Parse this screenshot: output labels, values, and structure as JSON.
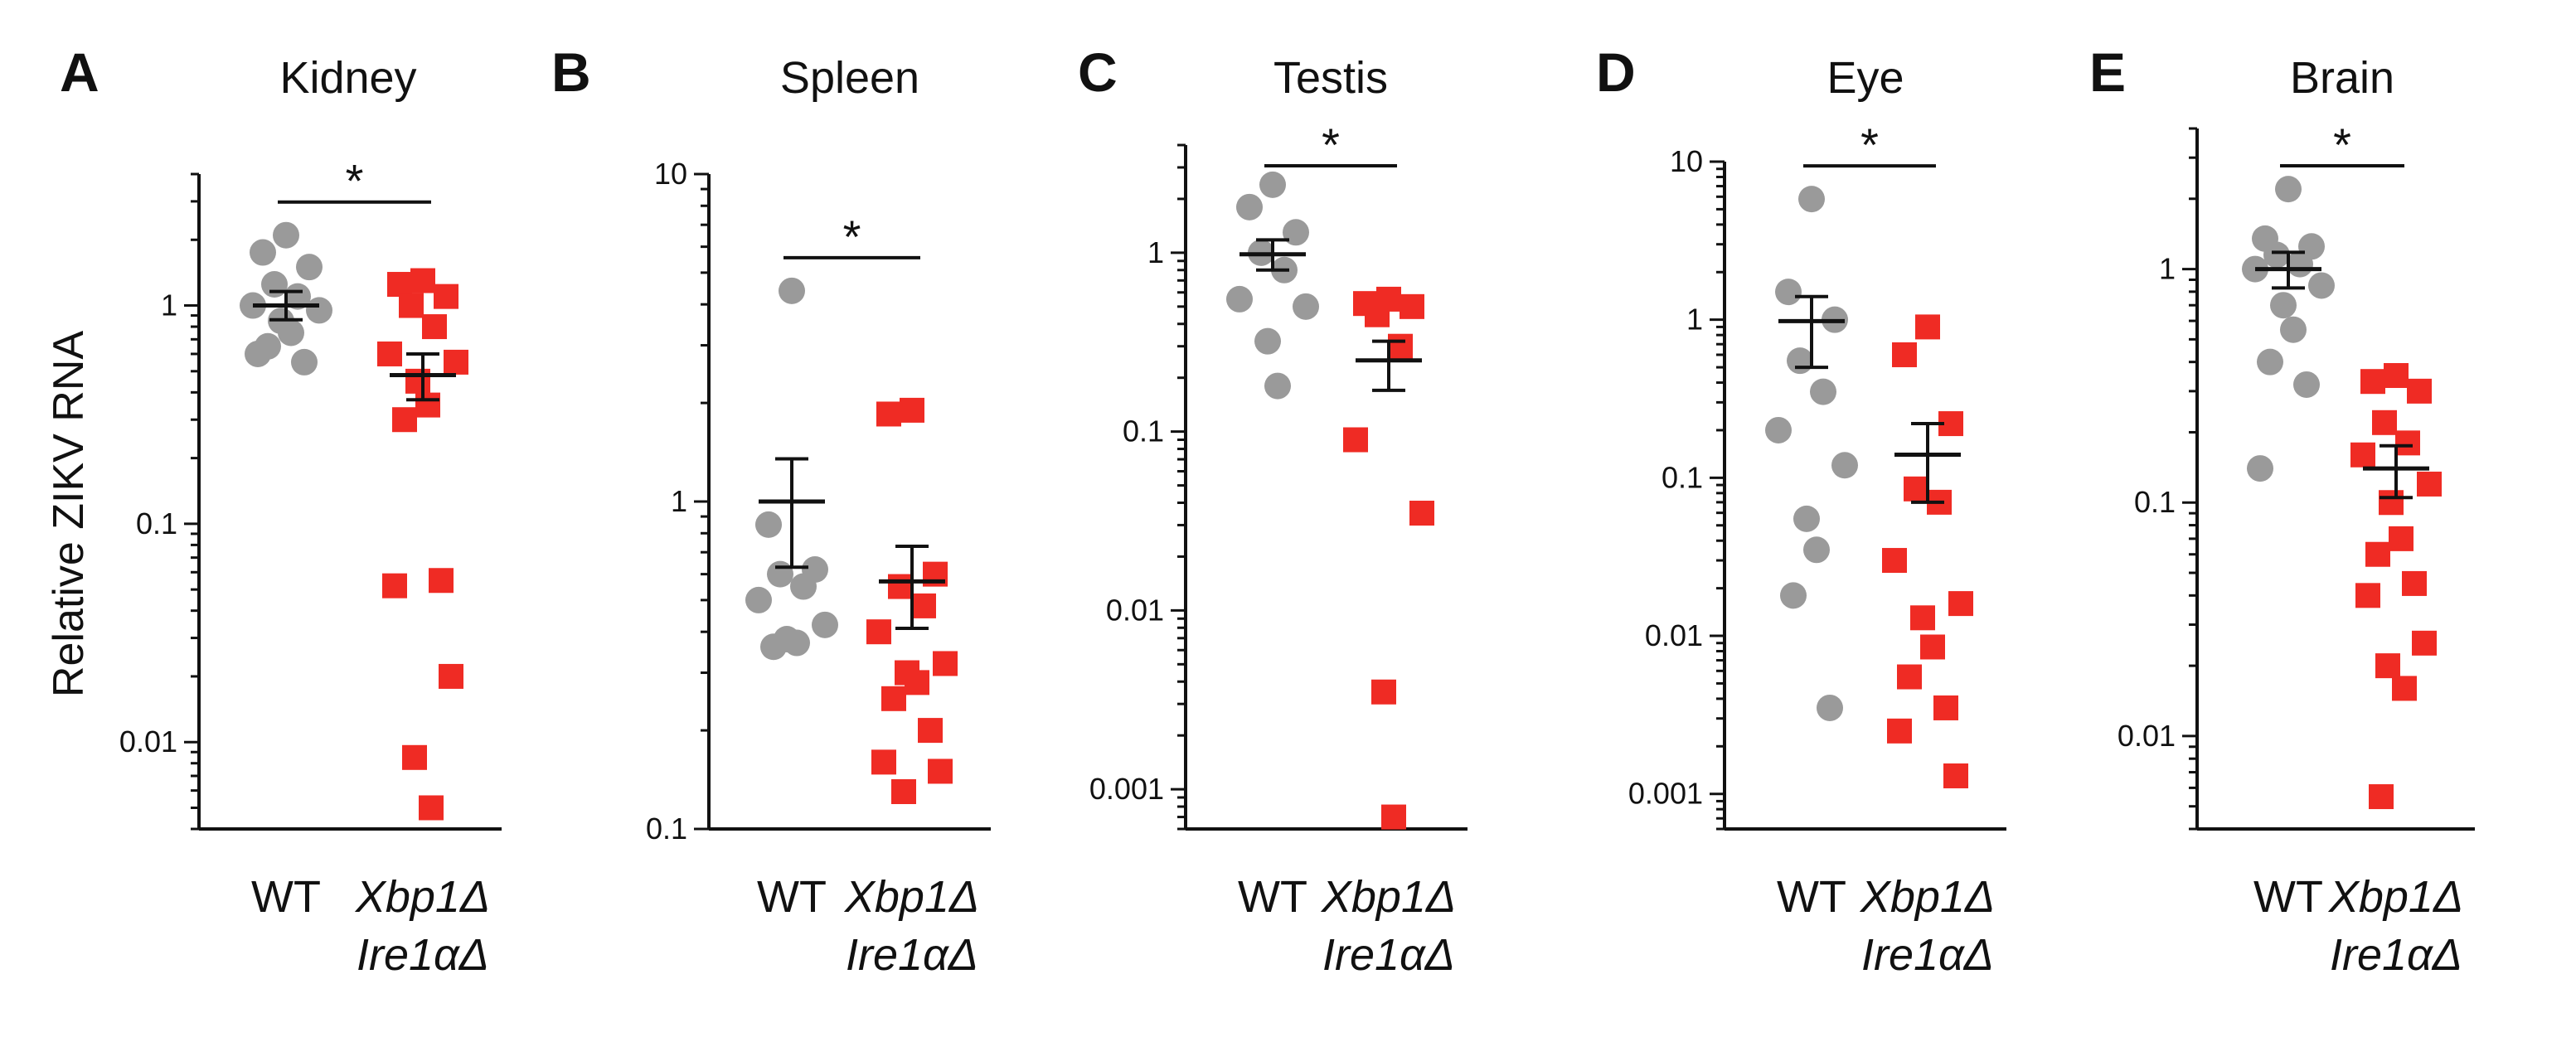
{
  "figure": {
    "ylabel": "Relative ZIKV RNA",
    "colors": {
      "wt": "#9a9a9a",
      "ko": "#ef2b24",
      "axis": "#111111"
    }
  },
  "chart_data": [
    {
      "type": "scatter",
      "panel": "A",
      "title": "Kidney",
      "yscale": "log",
      "ylim": [
        0.004,
        4
      ],
      "yticks": [
        0.01,
        0.1,
        1
      ],
      "ytick_labels": [
        "0.01",
        "0.1",
        "1"
      ],
      "categories": [
        "WT",
        "Xbp1Δ Ire1αΔ"
      ],
      "category_lines": [
        [
          "WT"
        ],
        [
          "Xbp1Δ",
          "Ire1αΔ"
        ]
      ],
      "series": [
        {
          "name": "WT",
          "marker": "circle",
          "mean": 1.0,
          "sem": [
            0.86,
            1.16
          ],
          "values": [
            2.1,
            1.75,
            1.5,
            1.25,
            1.1,
            1.0,
            0.95,
            0.85,
            0.75,
            0.65,
            0.55,
            0.6
          ]
        },
        {
          "name": "Xbp1Δ Ire1αΔ",
          "marker": "square",
          "mean": 0.48,
          "sem": [
            0.37,
            0.6
          ],
          "values": [
            1.3,
            1.25,
            1.1,
            1.0,
            0.8,
            0.6,
            0.55,
            0.45,
            0.35,
            0.3,
            0.055,
            0.052,
            0.02,
            0.0085,
            0.005
          ]
        }
      ],
      "significance": {
        "label": "*",
        "between": [
          "WT",
          "Xbp1Δ Ire1αΔ"
        ]
      }
    },
    {
      "type": "scatter",
      "panel": "B",
      "title": "Spleen",
      "yscale": "log",
      "ylim": [
        0.1,
        10
      ],
      "yticks": [
        0.1,
        1,
        10
      ],
      "ytick_labels": [
        "0.1",
        "1",
        "10"
      ],
      "categories": [
        "WT",
        "Xbp1Δ Ire1αΔ"
      ],
      "category_lines": [
        [
          "WT"
        ],
        [
          "Xbp1Δ",
          "Ire1αΔ"
        ]
      ],
      "series": [
        {
          "name": "WT",
          "marker": "circle",
          "mean": 1.0,
          "sem": [
            0.63,
            1.35
          ],
          "values": [
            4.4,
            0.85,
            0.62,
            0.6,
            0.55,
            0.5,
            0.42,
            0.38,
            0.37,
            0.36
          ]
        },
        {
          "name": "Xbp1Δ Ire1αΔ",
          "marker": "square",
          "mean": 0.57,
          "sem": [
            0.41,
            0.73
          ],
          "values": [
            1.9,
            1.85,
            0.6,
            0.55,
            0.48,
            0.4,
            0.32,
            0.3,
            0.28,
            0.25,
            0.2,
            0.16,
            0.15,
            0.13
          ]
        }
      ],
      "significance": {
        "label": "*",
        "between": [
          "WT",
          "Xbp1Δ Ire1αΔ"
        ]
      }
    },
    {
      "type": "scatter",
      "panel": "C",
      "title": "Testis",
      "yscale": "log",
      "ylim": [
        0.0006,
        4
      ],
      "yticks": [
        0.001,
        0.01,
        0.1,
        1
      ],
      "ytick_labels": [
        "0.001",
        "0.01",
        "0.1",
        "1"
      ],
      "categories": [
        "WT",
        "Xbp1Δ Ire1αΔ"
      ],
      "category_lines": [
        [
          "WT"
        ],
        [
          "Xbp1Δ",
          "Ire1αΔ"
        ]
      ],
      "series": [
        {
          "name": "WT",
          "marker": "circle",
          "mean": 0.98,
          "sem": [
            0.8,
            1.18
          ],
          "values": [
            2.4,
            1.8,
            1.3,
            1.0,
            0.8,
            0.55,
            0.5,
            0.32,
            0.18
          ]
        },
        {
          "name": "Xbp1Δ Ire1αΔ",
          "marker": "square",
          "mean": 0.25,
          "sem": [
            0.17,
            0.32
          ],
          "values": [
            0.55,
            0.52,
            0.5,
            0.45,
            0.3,
            0.09,
            0.035,
            0.0035,
            0.0007
          ]
        }
      ],
      "significance": {
        "label": "*",
        "between": [
          "WT",
          "Xbp1Δ Ire1αΔ"
        ]
      }
    },
    {
      "type": "scatter",
      "panel": "D",
      "title": "Eye",
      "yscale": "log",
      "ylim": [
        0.0006,
        10
      ],
      "yticks": [
        0.001,
        0.01,
        0.1,
        1,
        10
      ],
      "ytick_labels": [
        "0.001",
        "0.01",
        "0.1",
        "1",
        "10"
      ],
      "categories": [
        "WT",
        "Xbp1Δ Ire1αΔ"
      ],
      "category_lines": [
        [
          "WT"
        ],
        [
          "Xbp1Δ",
          "Ire1αΔ"
        ]
      ],
      "series": [
        {
          "name": "WT",
          "marker": "circle",
          "mean": 0.98,
          "sem": [
            0.5,
            1.4
          ],
          "values": [
            5.8,
            1.5,
            1.0,
            0.55,
            0.35,
            0.2,
            0.12,
            0.055,
            0.035,
            0.018,
            0.0035
          ]
        },
        {
          "name": "Xbp1Δ Ire1αΔ",
          "marker": "square",
          "mean": 0.14,
          "sem": [
            0.07,
            0.22
          ],
          "values": [
            0.9,
            0.6,
            0.22,
            0.085,
            0.07,
            0.03,
            0.016,
            0.013,
            0.0085,
            0.0055,
            0.0035,
            0.0025,
            0.0013
          ]
        }
      ],
      "significance": {
        "label": "*",
        "between": [
          "WT",
          "Xbp1Δ Ire1αΔ"
        ]
      }
    },
    {
      "type": "scatter",
      "panel": "E",
      "title": "Brain",
      "yscale": "log",
      "ylim": [
        0.004,
        4
      ],
      "yticks": [
        0.01,
        0.1,
        1
      ],
      "ytick_labels": [
        "0.01",
        "0.1",
        "1"
      ],
      "categories": [
        "WT",
        "Xbp1Δ Ire1αΔ"
      ],
      "category_lines": [
        [
          "WT"
        ],
        [
          "Xbp1Δ",
          "Ire1αΔ"
        ]
      ],
      "series": [
        {
          "name": "WT",
          "marker": "circle",
          "mean": 1.0,
          "sem": [
            0.83,
            1.18
          ],
          "values": [
            2.2,
            1.35,
            1.25,
            1.15,
            1.05,
            1.0,
            0.85,
            0.7,
            0.55,
            0.4,
            0.32,
            0.14
          ]
        },
        {
          "name": "Xbp1Δ Ire1αΔ",
          "marker": "square",
          "mean": 0.14,
          "sem": [
            0.105,
            0.175
          ],
          "values": [
            0.35,
            0.33,
            0.3,
            0.22,
            0.18,
            0.16,
            0.12,
            0.1,
            0.07,
            0.06,
            0.045,
            0.04,
            0.025,
            0.02,
            0.016,
            0.0055
          ]
        }
      ],
      "significance": {
        "label": "*",
        "between": [
          "WT",
          "Xbp1Δ Ire1αΔ"
        ]
      }
    }
  ]
}
